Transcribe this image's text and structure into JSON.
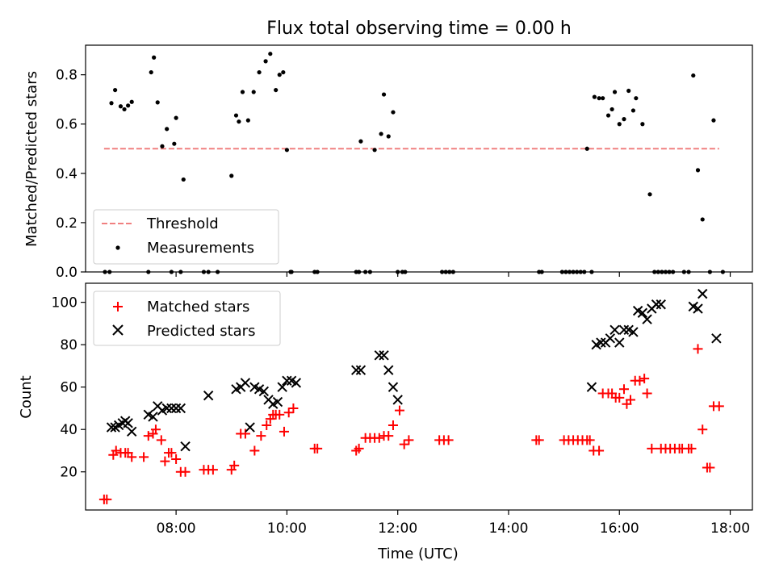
{
  "title": "Flux total observing time = 0.00 h",
  "chart_data": [
    {
      "type": "scatter",
      "title": "Flux total observing time = 0.00 h",
      "xlabel": "",
      "ylabel": "Matched/Predicted stars",
      "xlim": [
        "06:22",
        "18:24"
      ],
      "ylim": [
        0,
        0.92
      ],
      "yticks": [
        "0.0",
        "0.2",
        "0.4",
        "0.6",
        "0.8"
      ],
      "yticks_values": [
        0.0,
        0.2,
        0.4,
        0.6,
        0.8
      ],
      "legend_position": "lower-left",
      "colors": {
        "threshold": "#f08080",
        "measurements": "#000000"
      },
      "series": [
        {
          "name": "Threshold",
          "style": "dashed-line",
          "x": [
            "06:42",
            "17:48"
          ],
          "y": [
            0.5,
            0.5
          ]
        },
        {
          "name": "Measurements",
          "style": "dots",
          "x": [
            "06:43",
            "06:48",
            "06:50",
            "06:54",
            "07:00",
            "07:04",
            "07:08",
            "07:12",
            "07:30",
            "07:33",
            "07:36",
            "07:40",
            "07:45",
            "07:50",
            "07:55",
            "07:58",
            "08:00",
            "08:05",
            "08:08",
            "08:30",
            "08:35",
            "08:45",
            "09:00",
            "09:05",
            "09:08",
            "09:12",
            "09:18",
            "09:24",
            "09:30",
            "09:37",
            "09:42",
            "09:48",
            "09:52",
            "09:56",
            "10:00",
            "10:04",
            "10:05",
            "10:30",
            "10:33",
            "11:15",
            "11:18",
            "11:20",
            "11:25",
            "11:30",
            "11:35",
            "11:42",
            "11:45",
            "11:50",
            "11:55",
            "12:00",
            "12:05",
            "12:08",
            "12:48",
            "12:52",
            "12:56",
            "13:00",
            "14:33",
            "14:36",
            "14:58",
            "15:02",
            "15:06",
            "15:10",
            "15:14",
            "15:18",
            "15:22",
            "15:25",
            "15:30",
            "15:33",
            "15:38",
            "15:42",
            "15:48",
            "15:52",
            "15:55",
            "16:00",
            "16:05",
            "16:10",
            "16:15",
            "16:18",
            "16:25",
            "16:33",
            "16:38",
            "16:42",
            "16:46",
            "16:50",
            "16:54",
            "16:58",
            "17:10",
            "17:15",
            "17:20",
            "17:25",
            "17:30",
            "17:38",
            "17:42",
            "17:52"
          ],
          "y": [
            0.0,
            0.0,
            0.685,
            0.738,
            0.672,
            0.66,
            0.675,
            0.69,
            0.0,
            0.81,
            0.87,
            0.688,
            0.51,
            0.58,
            0.0,
            0.52,
            0.625,
            0.0,
            0.375,
            0.0,
            0.0,
            0.0,
            0.39,
            0.635,
            0.61,
            0.73,
            0.615,
            0.73,
            0.81,
            0.855,
            0.885,
            0.738,
            0.8,
            0.81,
            0.495,
            0.0,
            0.0,
            0.0,
            0.0,
            0.0,
            0.0,
            0.53,
            0.0,
            0.0,
            0.495,
            0.56,
            0.72,
            0.55,
            0.648,
            0.0,
            0.0,
            0.0,
            0.0,
            0.0,
            0.0,
            0.0,
            0.0,
            0.0,
            0.0,
            0.0,
            0.0,
            0.0,
            0.0,
            0.0,
            0.0,
            0.5,
            0.0,
            0.71,
            0.705,
            0.705,
            0.635,
            0.66,
            0.73,
            0.6,
            0.62,
            0.735,
            0.655,
            0.705,
            0.6,
            0.315,
            0.0,
            0.0,
            0.0,
            0.0,
            0.0,
            0.0,
            0.0,
            0.0,
            0.797,
            0.413,
            0.213,
            0.0,
            0.615,
            0.0
          ]
        }
      ]
    },
    {
      "type": "scatter",
      "xlabel": "Time (UTC)",
      "ylabel": "Count",
      "xlim": [
        "06:22",
        "18:24"
      ],
      "ylim": [
        2,
        109
      ],
      "xticks": [
        "08:00",
        "10:00",
        "12:00",
        "14:00",
        "16:00",
        "18:00"
      ],
      "yticks": [
        "20",
        "40",
        "60",
        "80",
        "100"
      ],
      "yticks_values": [
        20,
        40,
        60,
        80,
        100
      ],
      "legend_position": "upper-left",
      "colors": {
        "matched": "#ff0000",
        "predicted": "#000000"
      },
      "series": [
        {
          "name": "Matched stars",
          "marker": "+",
          "x": [
            "06:42",
            "06:45",
            "06:52",
            "06:55",
            "07:00",
            "07:05",
            "07:08",
            "07:12",
            "07:25",
            "07:30",
            "07:35",
            "07:38",
            "07:44",
            "07:48",
            "07:52",
            "07:55",
            "08:00",
            "08:05",
            "08:10",
            "08:30",
            "08:35",
            "08:40",
            "09:00",
            "09:03",
            "09:10",
            "09:15",
            "09:25",
            "09:32",
            "09:38",
            "09:42",
            "09:45",
            "09:48",
            "09:52",
            "09:57",
            "10:02",
            "10:07",
            "10:30",
            "10:33",
            "11:15",
            "11:18",
            "11:25",
            "11:30",
            "11:35",
            "11:40",
            "11:45",
            "11:50",
            "11:55",
            "12:02",
            "12:07",
            "12:12",
            "12:45",
            "12:50",
            "12:55",
            "14:30",
            "14:33",
            "15:00",
            "15:05",
            "15:10",
            "15:15",
            "15:20",
            "15:25",
            "15:28",
            "15:32",
            "15:38",
            "15:42",
            "15:48",
            "15:52",
            "15:56",
            "16:00",
            "16:05",
            "16:08",
            "16:12",
            "16:17",
            "16:22",
            "16:27",
            "16:30",
            "16:35",
            "16:45",
            "16:50",
            "16:55",
            "17:00",
            "17:05",
            "17:08",
            "17:15",
            "17:18",
            "17:25",
            "17:30",
            "17:35",
            "17:38",
            "17:42",
            "17:48"
          ],
          "y": [
            7,
            7,
            28,
            30,
            29,
            29,
            29,
            27,
            27,
            37,
            38,
            40,
            35,
            25,
            29,
            29,
            26,
            20,
            20,
            21,
            21,
            21,
            21,
            23,
            38,
            38,
            30,
            37,
            42,
            45,
            47,
            47,
            47,
            39,
            48,
            50,
            31,
            31,
            30,
            31,
            36,
            36,
            36,
            36,
            37,
            37,
            42,
            49,
            33,
            35,
            35,
            35,
            35,
            35,
            35,
            35,
            35,
            35,
            35,
            35,
            35,
            35,
            30,
            30,
            57,
            57,
            57,
            55,
            55,
            59,
            52,
            54,
            63,
            63,
            64,
            57,
            31,
            31,
            31,
            31,
            31,
            31,
            31,
            31,
            31,
            78,
            40,
            22,
            22,
            51,
            51
          ]
        },
        {
          "name": "Predicted stars",
          "marker": "x",
          "x": [
            "06:50",
            "06:54",
            "06:58",
            "07:02",
            "07:05",
            "07:08",
            "07:12",
            "07:30",
            "07:35",
            "07:40",
            "07:45",
            "07:50",
            "07:55",
            "08:00",
            "08:05",
            "08:10",
            "08:35",
            "09:05",
            "09:10",
            "09:15",
            "09:20",
            "09:25",
            "09:30",
            "09:35",
            "09:40",
            "09:45",
            "09:50",
            "09:55",
            "10:00",
            "10:05",
            "10:10",
            "11:15",
            "11:20",
            "11:40",
            "11:45",
            "11:50",
            "11:55",
            "12:00",
            "15:30",
            "15:35",
            "15:40",
            "15:45",
            "15:50",
            "15:55",
            "16:00",
            "16:05",
            "16:10",
            "16:15",
            "16:20",
            "16:25",
            "16:30",
            "16:35",
            "16:40",
            "16:45",
            "17:20",
            "17:25",
            "17:30",
            "17:45"
          ],
          "y": [
            41,
            41,
            42,
            43,
            44,
            43,
            39,
            47,
            46,
            51,
            49,
            50,
            50,
            50,
            50,
            32,
            56,
            59,
            60,
            62,
            41,
            60,
            59,
            58,
            54,
            52,
            53,
            60,
            63,
            63,
            62,
            68,
            68,
            75,
            75,
            68,
            60,
            54,
            60,
            80,
            81,
            81,
            83,
            87,
            81,
            87,
            87,
            86,
            96,
            95,
            92,
            97,
            99,
            99,
            98,
            97,
            104,
            83
          ]
        }
      ]
    }
  ]
}
